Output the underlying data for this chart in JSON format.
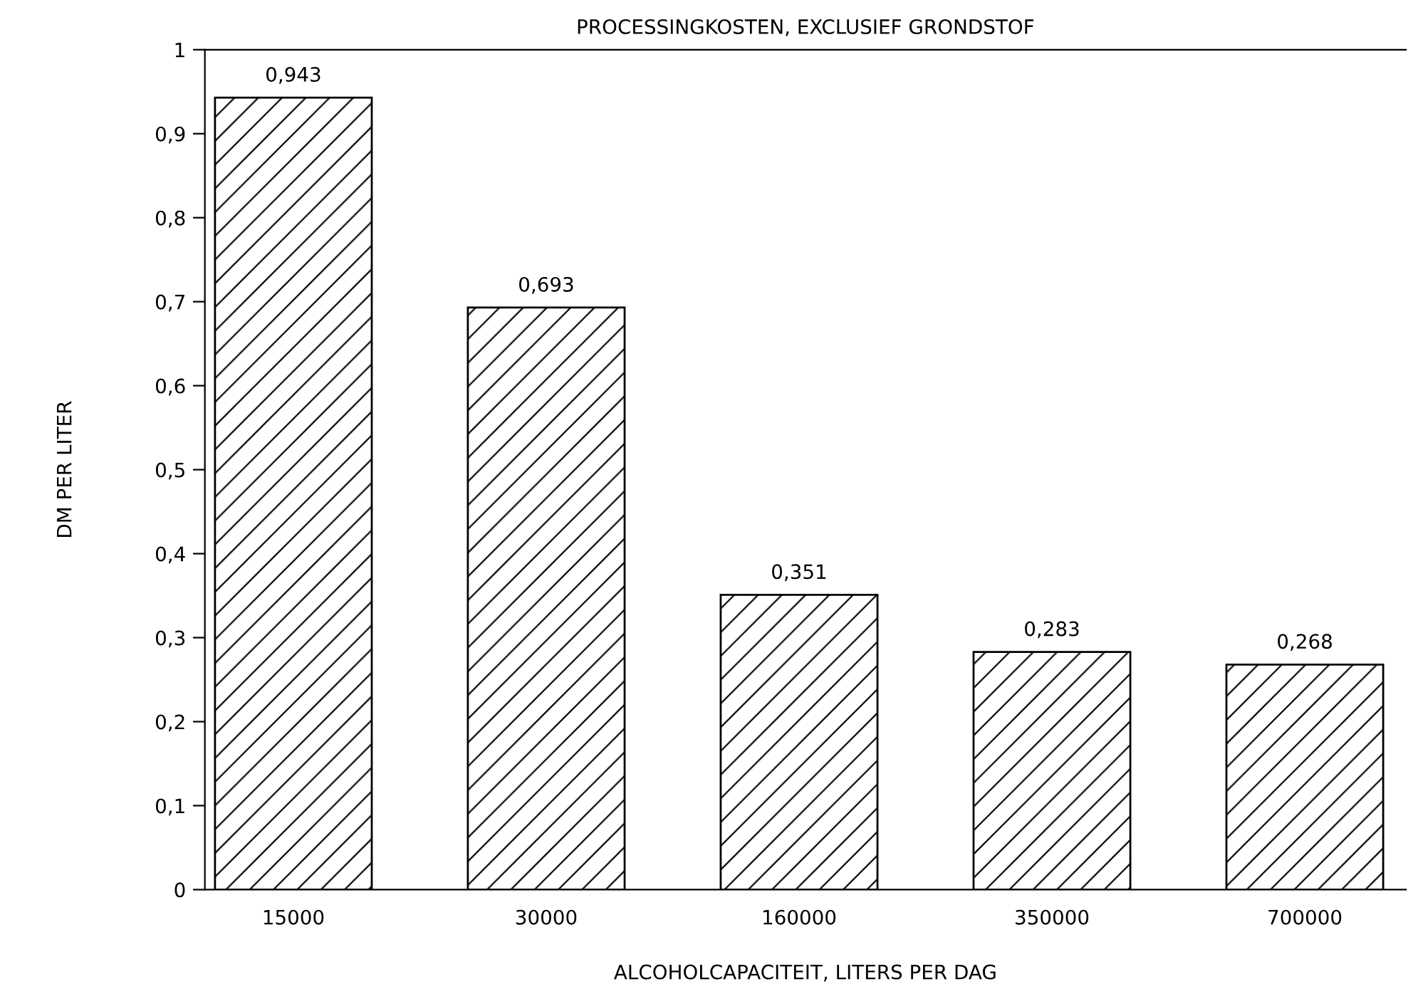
{
  "chart_data": {
    "type": "bar",
    "title": "PROCESSINGKOSTEN, EXCLUSIEF GRONDSTOF",
    "xlabel": "ALCOHOLCAPACITEIT, LITERS PER DAG",
    "ylabel": "DM PER LITER",
    "categories": [
      "15000",
      "30000",
      "160000",
      "350000",
      "700000"
    ],
    "values": [
      0.943,
      0.693,
      0.351,
      0.283,
      0.268
    ],
    "value_labels": [
      "0,943",
      "0,693",
      "0,351",
      "0,283",
      "0,268"
    ],
    "color": "#000000",
    "ylim": [
      0,
      1
    ],
    "yticks": [
      0,
      {
        "value": 0.1,
        "label": "0,1"
      },
      {
        "value": 0.2,
        "label": "0,2"
      },
      {
        "value": 0.3,
        "label": "0,3"
      },
      {
        "value": 0.4,
        "label": "0,4"
      },
      {
        "value": 0.5,
        "label": "0,5"
      },
      {
        "value": 0.6,
        "label": "0,6"
      },
      {
        "value": 0.7,
        "label": "0,7"
      },
      {
        "value": 0.8,
        "label": "0,8"
      },
      {
        "value": 0.9,
        "label": "0,9"
      },
      1
    ],
    "grid": false,
    "legend": false
  }
}
